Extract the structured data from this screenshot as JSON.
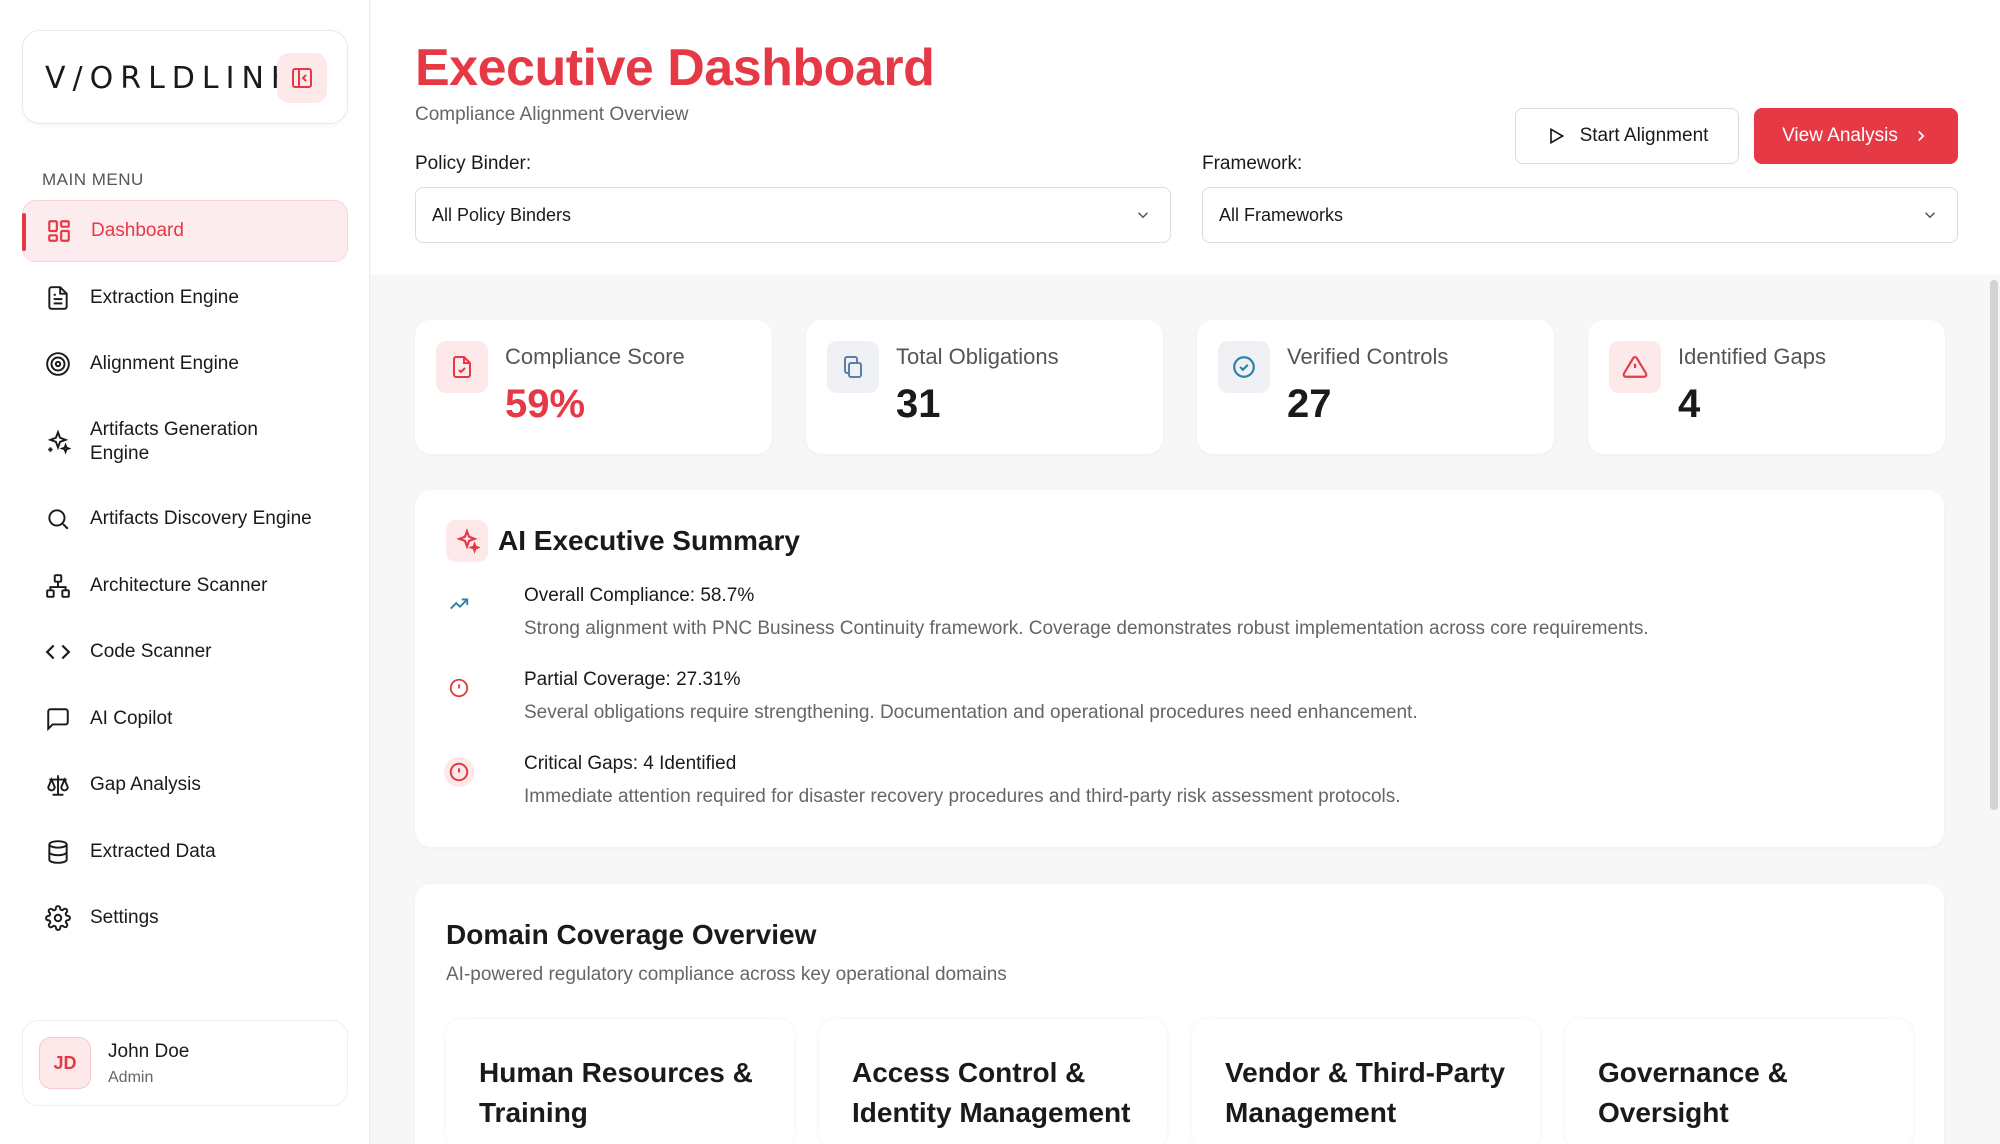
{
  "brand": {
    "logo_text": "V/ORLDLINK",
    "accent": "#e63946"
  },
  "sidebar": {
    "menu_title": "MAIN MENU",
    "items": [
      {
        "label": "Dashboard",
        "icon": "dashboard-grid-icon",
        "active": true
      },
      {
        "label": "Extraction Engine",
        "icon": "document-icon"
      },
      {
        "label": "Alignment Engine",
        "icon": "target-icon"
      },
      {
        "label": "Artifacts Generation Engine",
        "icon": "sparkles-icon"
      },
      {
        "label": "Artifacts Discovery Engine",
        "icon": "search-icon"
      },
      {
        "label": "Architecture Scanner",
        "icon": "network-icon"
      },
      {
        "label": "Code Scanner",
        "icon": "code-icon"
      },
      {
        "label": "AI Copilot",
        "icon": "chat-bubble-icon"
      },
      {
        "label": "Gap Analysis",
        "icon": "scale-icon"
      },
      {
        "label": "Extracted Data",
        "icon": "database-icon"
      },
      {
        "label": "Settings",
        "icon": "gear-icon"
      }
    ],
    "user": {
      "initials": "JD",
      "name": "John Doe",
      "role": "Admin"
    }
  },
  "header": {
    "title": "Executive Dashboard",
    "subtitle": "Compliance Alignment Overview",
    "start_button": "Start Alignment",
    "view_button": "View Analysis",
    "policy_label": "Policy Binder:",
    "policy_value": "All Policy Binders",
    "framework_label": "Framework:",
    "framework_value": "All Frameworks"
  },
  "stats": [
    {
      "label": "Compliance Score",
      "value": "59%",
      "icon": "file-check-icon"
    },
    {
      "label": "Total Obligations",
      "value": "31",
      "icon": "copy-icon"
    },
    {
      "label": "Verified Controls",
      "value": "27",
      "icon": "check-circle-icon"
    },
    {
      "label": "Identified Gaps",
      "value": "4",
      "icon": "warning-triangle-icon"
    }
  ],
  "summary": {
    "title": "AI Executive Summary",
    "items": [
      {
        "title": "Overall Compliance: 58.7%",
        "desc": "Strong alignment with PNC Business Continuity framework. Coverage demonstrates robust implementation across core requirements.",
        "icon": "trending-up-icon"
      },
      {
        "title": "Partial Coverage: 27.31%",
        "desc": "Several obligations require strengthening. Documentation and operational procedures need enhancement.",
        "icon": "alert-circle-icon"
      },
      {
        "title": "Critical Gaps: 4 Identified",
        "desc": "Immediate attention required for disaster recovery procedures and third-party risk assessment protocols.",
        "icon": "alert-circle-filled-icon"
      }
    ]
  },
  "domains": {
    "title": "Domain Coverage Overview",
    "subtitle": "AI-powered regulatory compliance across key operational domains",
    "tiles": [
      {
        "line1": "Human Resources &",
        "line2": "Training"
      },
      {
        "line1": "Access Control &",
        "line2": "Identity Management"
      },
      {
        "line1": "Vendor & Third-Party",
        "line2": "Management"
      },
      {
        "line1": "Governance &",
        "line2": "Oversight"
      }
    ]
  }
}
